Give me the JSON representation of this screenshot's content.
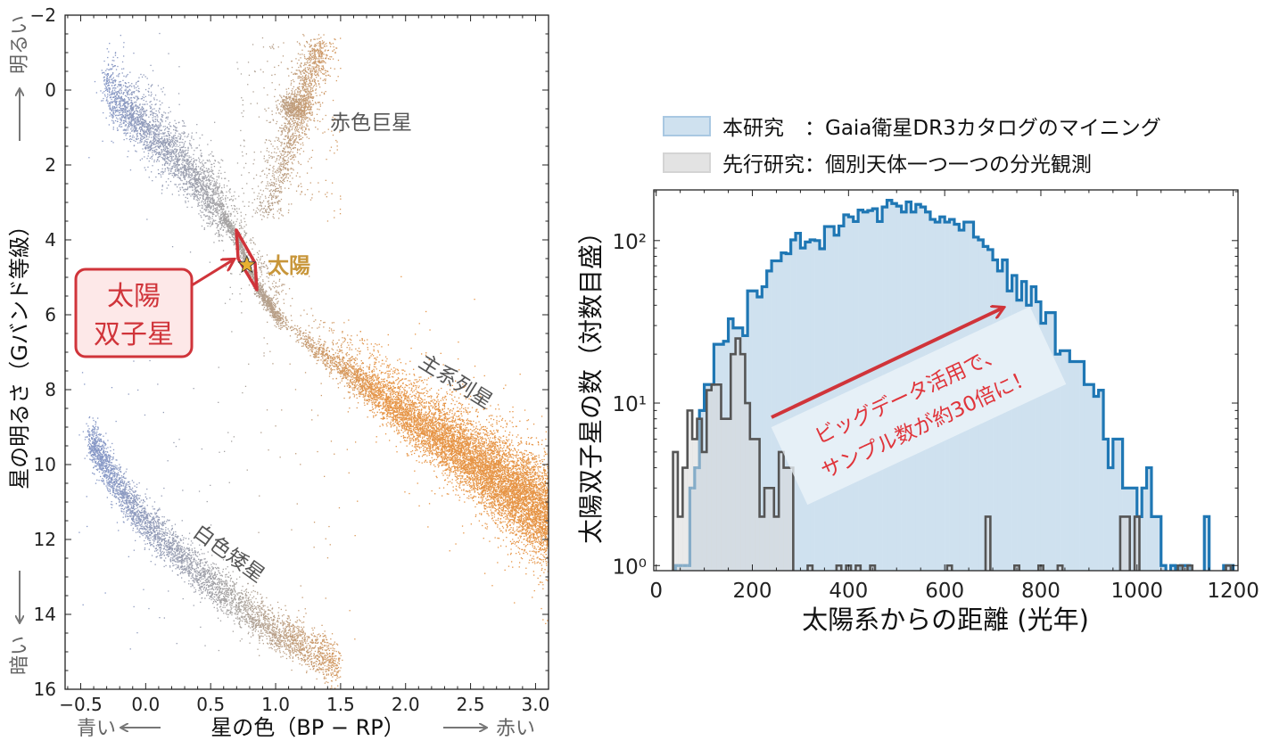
{
  "chart_data": [
    {
      "type": "scatter",
      "xlabel": "星の色（BP − RP）",
      "ylabel": "星の明るさ（Gバンド等級）",
      "xlim": [
        -0.62,
        3.1
      ],
      "ylim": [
        16,
        -2
      ],
      "y_inverted": true,
      "grid": false,
      "xticks": [
        -0.5,
        0.0,
        0.5,
        1.0,
        1.5,
        2.0,
        2.5,
        3.0
      ],
      "xtick_labels": [
        "−0.5",
        "0.0",
        "0.5",
        "1.0",
        "1.5",
        "2.0",
        "2.5",
        "3.0"
      ],
      "yticks": [
        -2,
        0,
        2,
        4,
        6,
        8,
        10,
        12,
        14,
        16
      ],
      "ytick_labels": [
        "−2",
        "0",
        "2",
        "4",
        "6",
        "8",
        "10",
        "12",
        "14",
        "16"
      ],
      "annotations": {
        "red_giants": "赤色巨星",
        "main_sequence": "主系列星",
        "white_dwarfs": "白色矮星",
        "sun": "太陽",
        "solar_twins_line1": "太陽",
        "solar_twins_line2": "双子星"
      },
      "direction_labels": {
        "brighter": "明るい",
        "fainter": "暗い",
        "bluer": "青い",
        "redder": "赤い"
      },
      "sun_point": {
        "bp_rp": 0.82,
        "g_mag": 4.67
      },
      "colors": {
        "blue_stars": "#8798c6",
        "mid_stars": "#a7a39f",
        "red_stars": "#e69445",
        "highlight": "#d0343a",
        "sun_label": "#c8963a"
      }
    },
    {
      "type": "histogram",
      "xlabel": "太陽系からの距離 (光年)",
      "ylabel": "太陽双子星の数（対数目盛）",
      "xlim": [
        -5,
        1210
      ],
      "ylim": [
        0.93,
        205
      ],
      "yscale": "log",
      "grid": false,
      "legend_placement": "above",
      "xticks": [
        0,
        200,
        400,
        600,
        800,
        1000,
        1200
      ],
      "xtick_labels": [
        "0",
        "200",
        "400",
        "600",
        "800",
        "1000",
        "1200"
      ],
      "yticks": [
        1,
        10,
        100
      ],
      "ytick_labels": [
        "10⁰",
        "10¹",
        "10²"
      ],
      "bin_width": 10,
      "series": [
        {
          "name": "本研究　：Gaia衛星DR3カタログのマイニング",
          "color": "#1f77b4",
          "fill": "#cfe1ef",
          "bins": [
            [
              40,
              1
            ],
            [
              50,
              1
            ],
            [
              60,
              1
            ],
            [
              70,
              3
            ],
            [
              80,
              4
            ],
            [
              90,
              9
            ],
            [
              100,
              13
            ],
            [
              110,
              13
            ],
            [
              120,
              23
            ],
            [
              130,
              23
            ],
            [
              140,
              24
            ],
            [
              150,
              33
            ],
            [
              160,
              29
            ],
            [
              170,
              29
            ],
            [
              180,
              26
            ],
            [
              190,
              49
            ],
            [
              200,
              49
            ],
            [
              210,
              45
            ],
            [
              220,
              52
            ],
            [
              230,
              65
            ],
            [
              240,
              75
            ],
            [
              250,
              75
            ],
            [
              260,
              84
            ],
            [
              270,
              83
            ],
            [
              280,
              101
            ],
            [
              290,
              111
            ],
            [
              300,
              90
            ],
            [
              310,
              98
            ],
            [
              320,
              101
            ],
            [
              330,
              100
            ],
            [
              340,
              89
            ],
            [
              350,
              122
            ],
            [
              360,
              122
            ],
            [
              370,
              108
            ],
            [
              380,
              123
            ],
            [
              390,
              144
            ],
            [
              400,
              140
            ],
            [
              410,
              131
            ],
            [
              420,
              154
            ],
            [
              430,
              150
            ],
            [
              440,
              153
            ],
            [
              450,
              157
            ],
            [
              460,
              131
            ],
            [
              470,
              161
            ],
            [
              480,
              177
            ],
            [
              490,
              169
            ],
            [
              500,
              163
            ],
            [
              510,
              150
            ],
            [
              520,
              173
            ],
            [
              530,
              150
            ],
            [
              540,
              167
            ],
            [
              550,
              161
            ],
            [
              560,
              150
            ],
            [
              570,
              135
            ],
            [
              580,
              130
            ],
            [
              590,
              140
            ],
            [
              600,
              130
            ],
            [
              610,
              135
            ],
            [
              620,
              126
            ],
            [
              630,
              116
            ],
            [
              640,
              130
            ],
            [
              650,
              130
            ],
            [
              660,
              105
            ],
            [
              670,
              101
            ],
            [
              680,
              92
            ],
            [
              690,
              88
            ],
            [
              700,
              76
            ],
            [
              710,
              65
            ],
            [
              720,
              76
            ],
            [
              730,
              49
            ],
            [
              740,
              61
            ],
            [
              750,
              43
            ],
            [
              760,
              56
            ],
            [
              770,
              40
            ],
            [
              780,
              52
            ],
            [
              790,
              42
            ],
            [
              800,
              31
            ],
            [
              810,
              36
            ],
            [
              820,
              36
            ],
            [
              830,
              20
            ],
            [
              840,
              21
            ],
            [
              850,
              21
            ],
            [
              860,
              18
            ],
            [
              870,
              18
            ],
            [
              880,
              18
            ],
            [
              890,
              13
            ],
            [
              900,
              13
            ],
            [
              910,
              11
            ],
            [
              920,
              12
            ],
            [
              930,
              6
            ],
            [
              940,
              4
            ],
            [
              950,
              6
            ],
            [
              960,
              6
            ],
            [
              970,
              3
            ],
            [
              980,
              3
            ],
            [
              990,
              3
            ],
            [
              1000,
              2
            ],
            [
              1010,
              3
            ],
            [
              1020,
              4
            ],
            [
              1030,
              2
            ],
            [
              1040,
              2
            ],
            [
              1050,
              1
            ],
            [
              1060,
              0
            ],
            [
              1070,
              1
            ],
            [
              1080,
              0
            ],
            [
              1090,
              1
            ],
            [
              1100,
              1
            ],
            [
              1110,
              0
            ],
            [
              1120,
              0
            ],
            [
              1130,
              0
            ],
            [
              1140,
              2
            ],
            [
              1150,
              0
            ],
            [
              1160,
              0
            ],
            [
              1170,
              0
            ],
            [
              1180,
              1
            ],
            [
              1190,
              1
            ]
          ]
        },
        {
          "name": "先行研究：個別天体一つ一つの分光観測",
          "color": "#555555",
          "fill": "#d9d9d9",
          "bins": [
            [
              35,
              5
            ],
            [
              45,
              2
            ],
            [
              55,
              4
            ],
            [
              65,
              9
            ],
            [
              75,
              6
            ],
            [
              85,
              8
            ],
            [
              95,
              5
            ],
            [
              105,
              12
            ],
            [
              115,
              13
            ],
            [
              125,
              13
            ],
            [
              135,
              8
            ],
            [
              145,
              8
            ],
            [
              155,
              20
            ],
            [
              165,
              25
            ],
            [
              175,
              20
            ],
            [
              185,
              10
            ],
            [
              195,
              6
            ],
            [
              205,
              6
            ],
            [
              215,
              2
            ],
            [
              225,
              3
            ],
            [
              235,
              3
            ],
            [
              245,
              2
            ],
            [
              255,
              5
            ],
            [
              265,
              4
            ],
            [
              275,
              4
            ],
            [
              315,
              1
            ],
            [
              375,
              1
            ],
            [
              395,
              1
            ],
            [
              415,
              1
            ],
            [
              445,
              1
            ],
            [
              605,
              1
            ],
            [
              685,
              2
            ],
            [
              745,
              1
            ],
            [
              795,
              1
            ],
            [
              835,
              1
            ],
            [
              965,
              2
            ],
            [
              975,
              2
            ],
            [
              995,
              2
            ],
            [
              1085,
              1
            ],
            [
              1105,
              1
            ],
            [
              1185,
              1
            ]
          ]
        }
      ],
      "annotation": {
        "line1": "ビッグデータ活用で、",
        "line2": "サンプル数が約30倍に！",
        "color": "#e0343a"
      }
    }
  ]
}
